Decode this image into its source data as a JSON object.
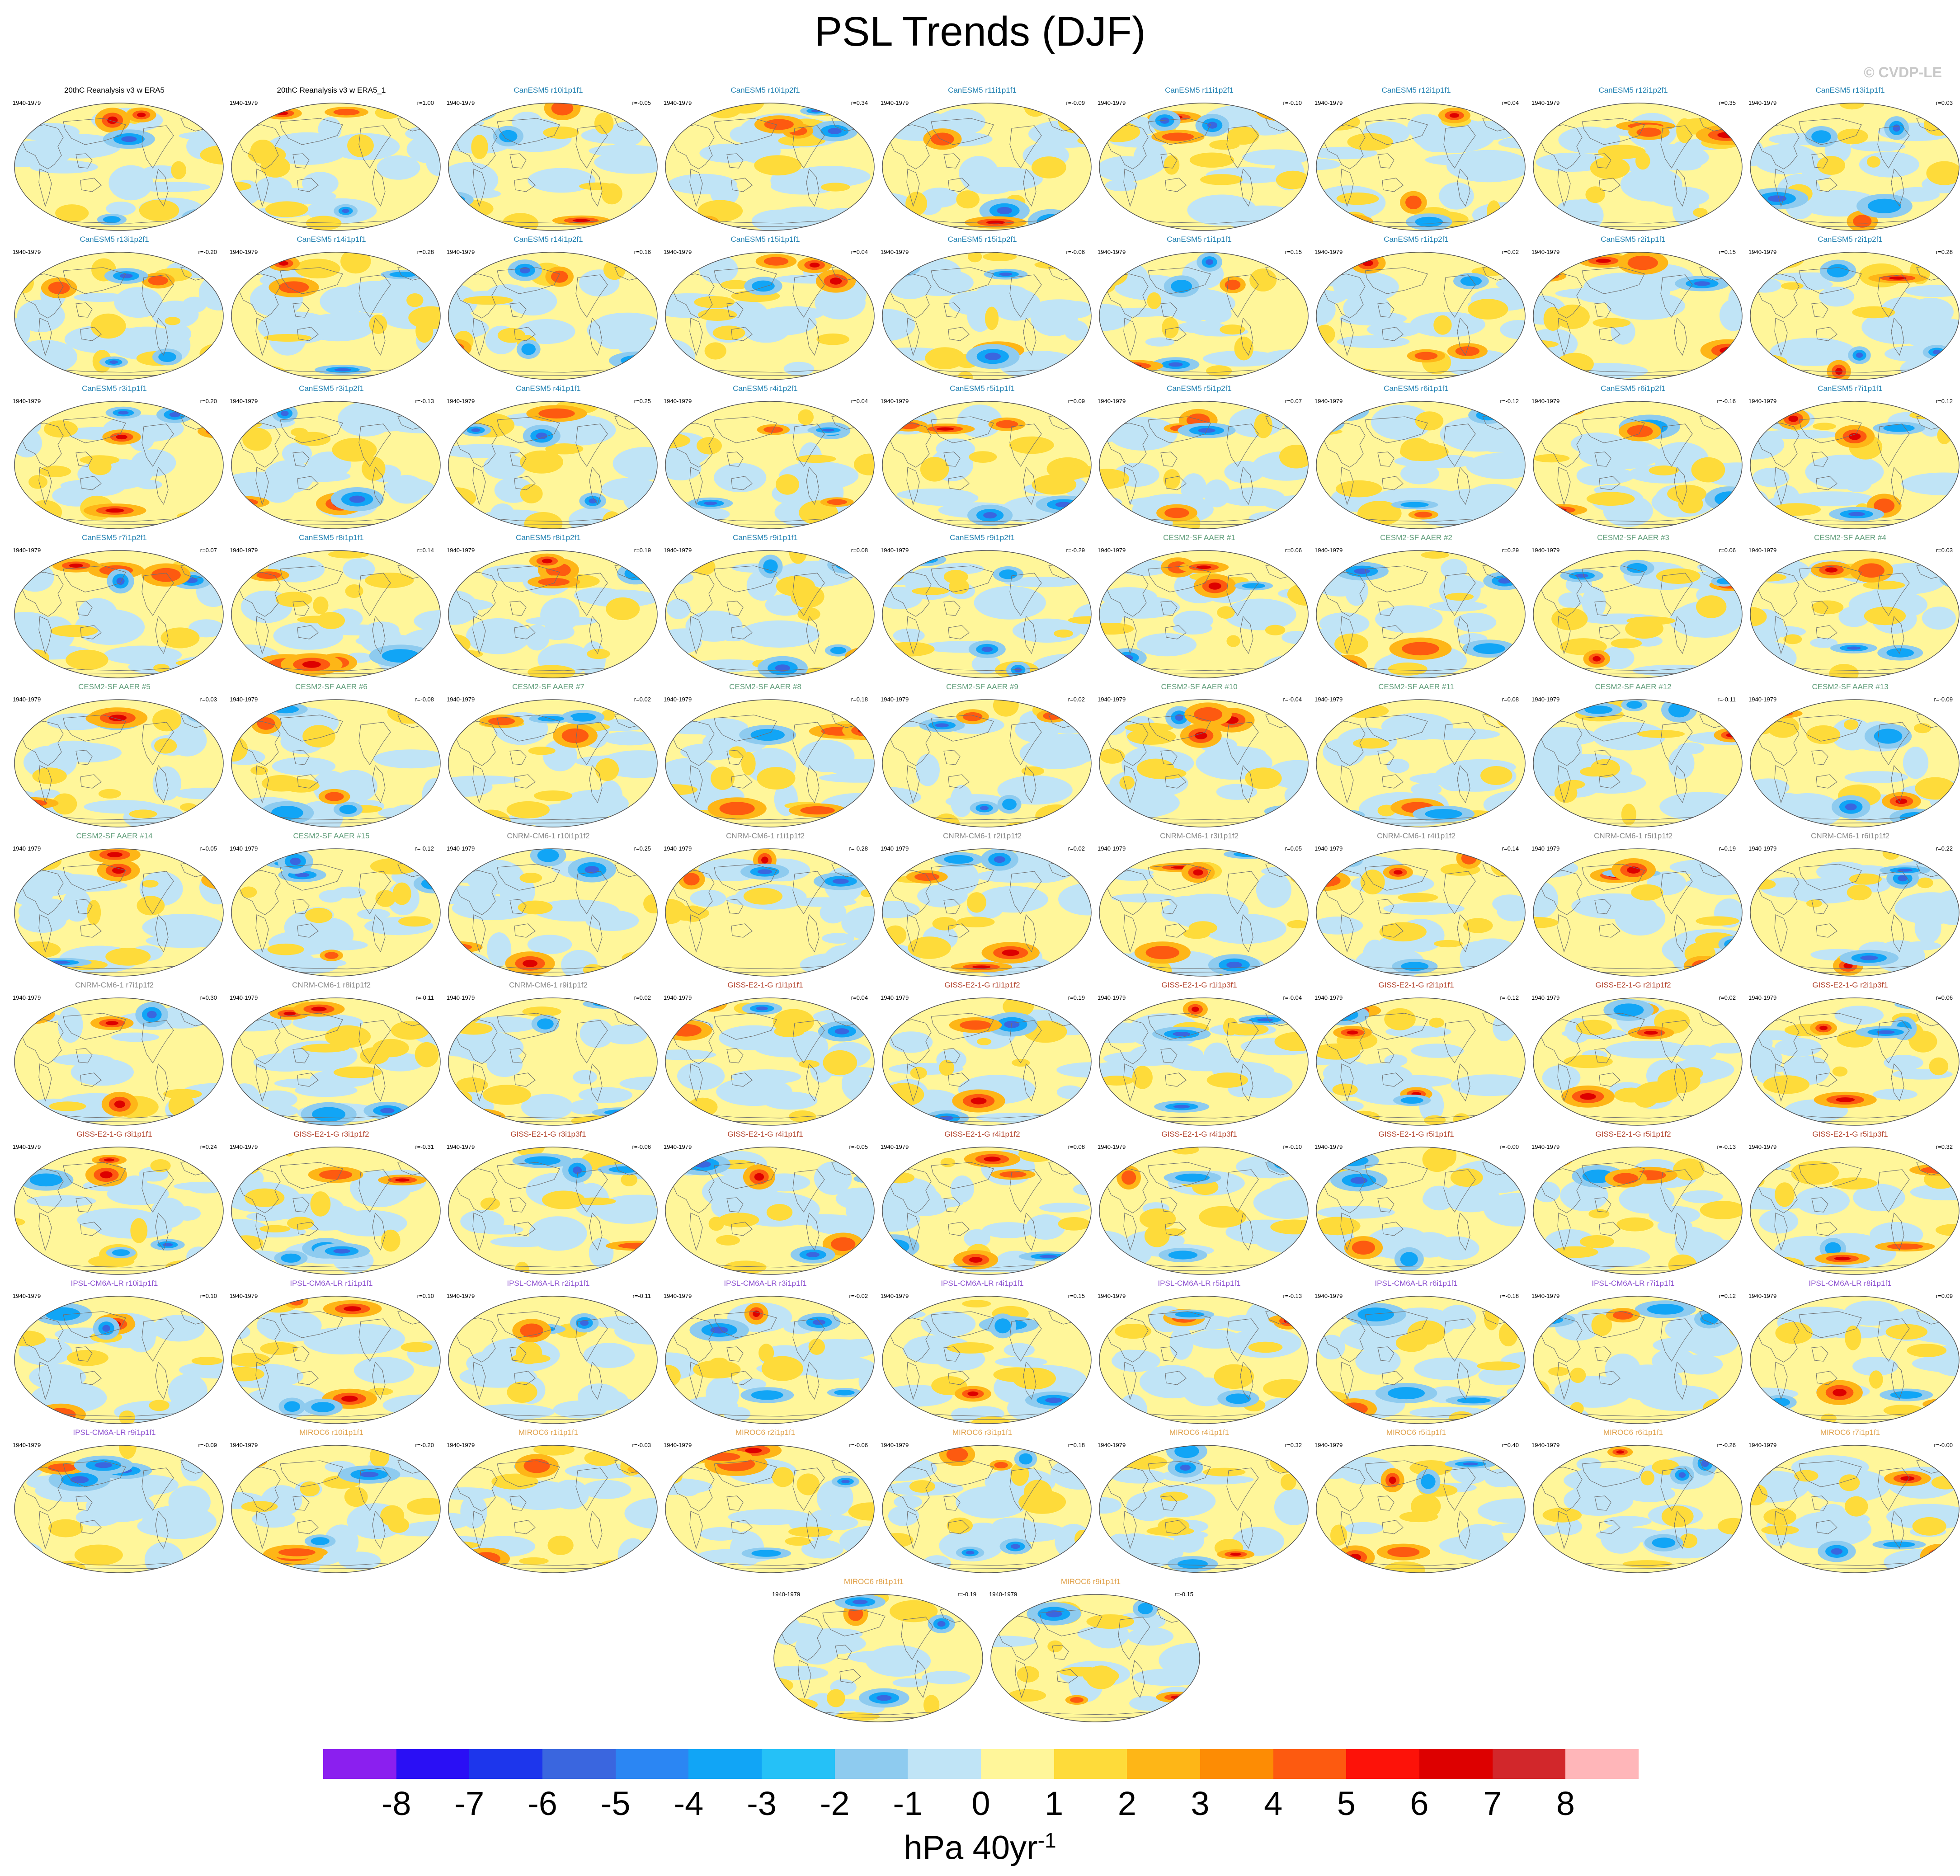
{
  "title": "PSL Trends (DJF)",
  "copyright": "© CVDP-LE",
  "period": "1940-1979",
  "units": {
    "base": "hPa 40yr",
    "exponent": "-1"
  },
  "colorbar": {
    "colors": [
      "#8b1fef",
      "#2a0ff5",
      "#1d36ec",
      "#3a66df",
      "#2b86f3",
      "#11a5f6",
      "#25c1f7",
      "#8ecbef",
      "#c0e4f6",
      "#fff69a",
      "#fedb3a",
      "#feb617",
      "#fd8c04",
      "#fd5a10",
      "#fd1209",
      "#dd0000",
      "#d2272b",
      "#ffb6b9"
    ],
    "labels": [
      "-8",
      "-7",
      "-6",
      "-5",
      "-4",
      "-3",
      "-2",
      "-1",
      "0",
      "1",
      "2",
      "3",
      "4",
      "5",
      "6",
      "7",
      "8"
    ]
  },
  "groups": {
    "obs": "#000000",
    "CanESM5": "#1e7fb0",
    "CESM2-SF AAER": "#5e9c78",
    "CNRM-CM6-1": "#8a8a8a",
    "GISS-E2-1-G": "#b3432c",
    "IPSL-CM6A-LR": "#8c4fd0",
    "MIROC6": "#e0a048"
  },
  "panels": [
    {
      "name": "20thC Reanalysis v3 w ERA5",
      "group": "obs",
      "r": ""
    },
    {
      "name": "20thC Reanalysis v3 w ERA5_1",
      "group": "obs",
      "r": "r=1.00"
    },
    {
      "name": "CanESM5 r10i1p1f1",
      "group": "CanESM5",
      "r": "r=-0.05"
    },
    {
      "name": "CanESM5 r10i1p2f1",
      "group": "CanESM5",
      "r": "r=0.34"
    },
    {
      "name": "CanESM5 r11i1p1f1",
      "group": "CanESM5",
      "r": "r=-0.09"
    },
    {
      "name": "CanESM5 r11i1p2f1",
      "group": "CanESM5",
      "r": "r=-0.10"
    },
    {
      "name": "CanESM5 r12i1p1f1",
      "group": "CanESM5",
      "r": "r=0.04"
    },
    {
      "name": "CanESM5 r12i1p2f1",
      "group": "CanESM5",
      "r": "r=0.35"
    },
    {
      "name": "CanESM5 r13i1p1f1",
      "group": "CanESM5",
      "r": "r=0.03"
    },
    {
      "name": "CanESM5 r13i1p2f1",
      "group": "CanESM5",
      "r": "r=-0.20"
    },
    {
      "name": "CanESM5 r14i1p1f1",
      "group": "CanESM5",
      "r": "r=0.28"
    },
    {
      "name": "CanESM5 r14i1p2f1",
      "group": "CanESM5",
      "r": "r=0.16"
    },
    {
      "name": "CanESM5 r15i1p1f1",
      "group": "CanESM5",
      "r": "r=0.04"
    },
    {
      "name": "CanESM5 r15i1p2f1",
      "group": "CanESM5",
      "r": "r=-0.06"
    },
    {
      "name": "CanESM5 r1i1p1f1",
      "group": "CanESM5",
      "r": "r=0.15"
    },
    {
      "name": "CanESM5 r1i1p2f1",
      "group": "CanESM5",
      "r": "r=0.02"
    },
    {
      "name": "CanESM5 r2i1p1f1",
      "group": "CanESM5",
      "r": "r=0.15"
    },
    {
      "name": "CanESM5 r2i1p2f1",
      "group": "CanESM5",
      "r": "r=0.28"
    },
    {
      "name": "CanESM5 r3i1p1f1",
      "group": "CanESM5",
      "r": "r=0.20"
    },
    {
      "name": "CanESM5 r3i1p2f1",
      "group": "CanESM5",
      "r": "r=-0.13"
    },
    {
      "name": "CanESM5 r4i1p1f1",
      "group": "CanESM5",
      "r": "r=0.25"
    },
    {
      "name": "CanESM5 r4i1p2f1",
      "group": "CanESM5",
      "r": "r=0.04"
    },
    {
      "name": "CanESM5 r5i1p1f1",
      "group": "CanESM5",
      "r": "r=0.09"
    },
    {
      "name": "CanESM5 r5i1p2f1",
      "group": "CanESM5",
      "r": "r=0.07"
    },
    {
      "name": "CanESM5 r6i1p1f1",
      "group": "CanESM5",
      "r": "r=-0.12"
    },
    {
      "name": "CanESM5 r6i1p2f1",
      "group": "CanESM5",
      "r": "r=-0.16"
    },
    {
      "name": "CanESM5 r7i1p1f1",
      "group": "CanESM5",
      "r": "r=0.12"
    },
    {
      "name": "CanESM5 r7i1p2f1",
      "group": "CanESM5",
      "r": "r=0.07"
    },
    {
      "name": "CanESM5 r8i1p1f1",
      "group": "CanESM5",
      "r": "r=0.14"
    },
    {
      "name": "CanESM5 r8i1p2f1",
      "group": "CanESM5",
      "r": "r=0.19"
    },
    {
      "name": "CanESM5 r9i1p1f1",
      "group": "CanESM5",
      "r": "r=0.08"
    },
    {
      "name": "CanESM5 r9i1p2f1",
      "group": "CanESM5",
      "r": "r=-0.29"
    },
    {
      "name": "CESM2-SF AAER #1",
      "group": "CESM2-SF AAER",
      "r": "r=0.06"
    },
    {
      "name": "CESM2-SF AAER #2",
      "group": "CESM2-SF AAER",
      "r": "r=0.29"
    },
    {
      "name": "CESM2-SF AAER #3",
      "group": "CESM2-SF AAER",
      "r": "r=0.06"
    },
    {
      "name": "CESM2-SF AAER #4",
      "group": "CESM2-SF AAER",
      "r": "r=0.03"
    },
    {
      "name": "CESM2-SF AAER #5",
      "group": "CESM2-SF AAER",
      "r": "r=0.03"
    },
    {
      "name": "CESM2-SF AAER #6",
      "group": "CESM2-SF AAER",
      "r": "r=-0.08"
    },
    {
      "name": "CESM2-SF AAER #7",
      "group": "CESM2-SF AAER",
      "r": "r=0.02"
    },
    {
      "name": "CESM2-SF AAER #8",
      "group": "CESM2-SF AAER",
      "r": "r=0.18"
    },
    {
      "name": "CESM2-SF AAER #9",
      "group": "CESM2-SF AAER",
      "r": "r=0.02"
    },
    {
      "name": "CESM2-SF AAER #10",
      "group": "CESM2-SF AAER",
      "r": "r=-0.04"
    },
    {
      "name": "CESM2-SF AAER #11",
      "group": "CESM2-SF AAER",
      "r": "r=0.08"
    },
    {
      "name": "CESM2-SF AAER #12",
      "group": "CESM2-SF AAER",
      "r": "r=-0.11"
    },
    {
      "name": "CESM2-SF AAER #13",
      "group": "CESM2-SF AAER",
      "r": "r=-0.09"
    },
    {
      "name": "CESM2-SF AAER #14",
      "group": "CESM2-SF AAER",
      "r": "r=0.05"
    },
    {
      "name": "CESM2-SF AAER #15",
      "group": "CESM2-SF AAER",
      "r": "r=-0.12"
    },
    {
      "name": "CNRM-CM6-1 r10i1p1f2",
      "group": "CNRM-CM6-1",
      "r": "r=0.25"
    },
    {
      "name": "CNRM-CM6-1 r1i1p1f2",
      "group": "CNRM-CM6-1",
      "r": "r=-0.28"
    },
    {
      "name": "CNRM-CM6-1 r2i1p1f2",
      "group": "CNRM-CM6-1",
      "r": "r=0.02"
    },
    {
      "name": "CNRM-CM6-1 r3i1p1f2",
      "group": "CNRM-CM6-1",
      "r": "r=0.05"
    },
    {
      "name": "CNRM-CM6-1 r4i1p1f2",
      "group": "CNRM-CM6-1",
      "r": "r=0.14"
    },
    {
      "name": "CNRM-CM6-1 r5i1p1f2",
      "group": "CNRM-CM6-1",
      "r": "r=0.19"
    },
    {
      "name": "CNRM-CM6-1 r6i1p1f2",
      "group": "CNRM-CM6-1",
      "r": "r=0.22"
    },
    {
      "name": "CNRM-CM6-1 r7i1p1f2",
      "group": "CNRM-CM6-1",
      "r": "r=0.30"
    },
    {
      "name": "CNRM-CM6-1 r8i1p1f2",
      "group": "CNRM-CM6-1",
      "r": "r=-0.11"
    },
    {
      "name": "CNRM-CM6-1 r9i1p1f2",
      "group": "CNRM-CM6-1",
      "r": "r=0.02"
    },
    {
      "name": "GISS-E2-1-G r1i1p1f1",
      "group": "GISS-E2-1-G",
      "r": "r=0.04"
    },
    {
      "name": "GISS-E2-1-G r1i1p1f2",
      "group": "GISS-E2-1-G",
      "r": "r=0.19"
    },
    {
      "name": "GISS-E2-1-G r1i1p3f1",
      "group": "GISS-E2-1-G",
      "r": "r=-0.04"
    },
    {
      "name": "GISS-E2-1-G r2i1p1f1",
      "group": "GISS-E2-1-G",
      "r": "r=-0.12"
    },
    {
      "name": "GISS-E2-1-G r2i1p1f2",
      "group": "GISS-E2-1-G",
      "r": "r=0.02"
    },
    {
      "name": "GISS-E2-1-G r2i1p3f1",
      "group": "GISS-E2-1-G",
      "r": "r=0.06"
    },
    {
      "name": "GISS-E2-1-G r3i1p1f1",
      "group": "GISS-E2-1-G",
      "r": "r=0.24"
    },
    {
      "name": "GISS-E2-1-G r3i1p1f2",
      "group": "GISS-E2-1-G",
      "r": "r=-0.31"
    },
    {
      "name": "GISS-E2-1-G r3i1p3f1",
      "group": "GISS-E2-1-G",
      "r": "r=-0.06"
    },
    {
      "name": "GISS-E2-1-G r4i1p1f1",
      "group": "GISS-E2-1-G",
      "r": "r=-0.05"
    },
    {
      "name": "GISS-E2-1-G r4i1p1f2",
      "group": "GISS-E2-1-G",
      "r": "r=0.08"
    },
    {
      "name": "GISS-E2-1-G r4i1p3f1",
      "group": "GISS-E2-1-G",
      "r": "r=-0.10"
    },
    {
      "name": "GISS-E2-1-G r5i1p1f1",
      "group": "GISS-E2-1-G",
      "r": "r=-0.00"
    },
    {
      "name": "GISS-E2-1-G r5i1p1f2",
      "group": "GISS-E2-1-G",
      "r": "r=-0.13"
    },
    {
      "name": "GISS-E2-1-G r5i1p3f1",
      "group": "GISS-E2-1-G",
      "r": "r=0.32"
    },
    {
      "name": "IPSL-CM6A-LR r10i1p1f1",
      "group": "IPSL-CM6A-LR",
      "r": "r=0.10"
    },
    {
      "name": "IPSL-CM6A-LR r1i1p1f1",
      "group": "IPSL-CM6A-LR",
      "r": "r=0.10"
    },
    {
      "name": "IPSL-CM6A-LR r2i1p1f1",
      "group": "IPSL-CM6A-LR",
      "r": "r=-0.11"
    },
    {
      "name": "IPSL-CM6A-LR r3i1p1f1",
      "group": "IPSL-CM6A-LR",
      "r": "r=-0.02"
    },
    {
      "name": "IPSL-CM6A-LR r4i1p1f1",
      "group": "IPSL-CM6A-LR",
      "r": "r=0.15"
    },
    {
      "name": "IPSL-CM6A-LR r5i1p1f1",
      "group": "IPSL-CM6A-LR",
      "r": "r=-0.13"
    },
    {
      "name": "IPSL-CM6A-LR r6i1p1f1",
      "group": "IPSL-CM6A-LR",
      "r": "r=-0.18"
    },
    {
      "name": "IPSL-CM6A-LR r7i1p1f1",
      "group": "IPSL-CM6A-LR",
      "r": "r=0.12"
    },
    {
      "name": "IPSL-CM6A-LR r8i1p1f1",
      "group": "IPSL-CM6A-LR",
      "r": "r=0.09"
    },
    {
      "name": "IPSL-CM6A-LR r9i1p1f1",
      "group": "IPSL-CM6A-LR",
      "r": "r=-0.09"
    },
    {
      "name": "MIROC6 r10i1p1f1",
      "group": "MIROC6",
      "r": "r=-0.20"
    },
    {
      "name": "MIROC6 r1i1p1f1",
      "group": "MIROC6",
      "r": "r=-0.03"
    },
    {
      "name": "MIROC6 r2i1p1f1",
      "group": "MIROC6",
      "r": "r=-0.06"
    },
    {
      "name": "MIROC6 r3i1p1f1",
      "group": "MIROC6",
      "r": "r=0.18"
    },
    {
      "name": "MIROC6 r4i1p1f1",
      "group": "MIROC6",
      "r": "r=0.32"
    },
    {
      "name": "MIROC6 r5i1p1f1",
      "group": "MIROC6",
      "r": "r=0.40"
    },
    {
      "name": "MIROC6 r6i1p1f1",
      "group": "MIROC6",
      "r": "r=-0.26"
    },
    {
      "name": "MIROC6 r7i1p1f1",
      "group": "MIROC6",
      "r": "r=-0.00"
    },
    {
      "name": "MIROC6 r8i1p1f1",
      "group": "MIROC6",
      "r": "r=-0.19"
    },
    {
      "name": "MIROC6 r9i1p1f1",
      "group": "MIROC6",
      "r": "r=-0.15"
    }
  ]
}
